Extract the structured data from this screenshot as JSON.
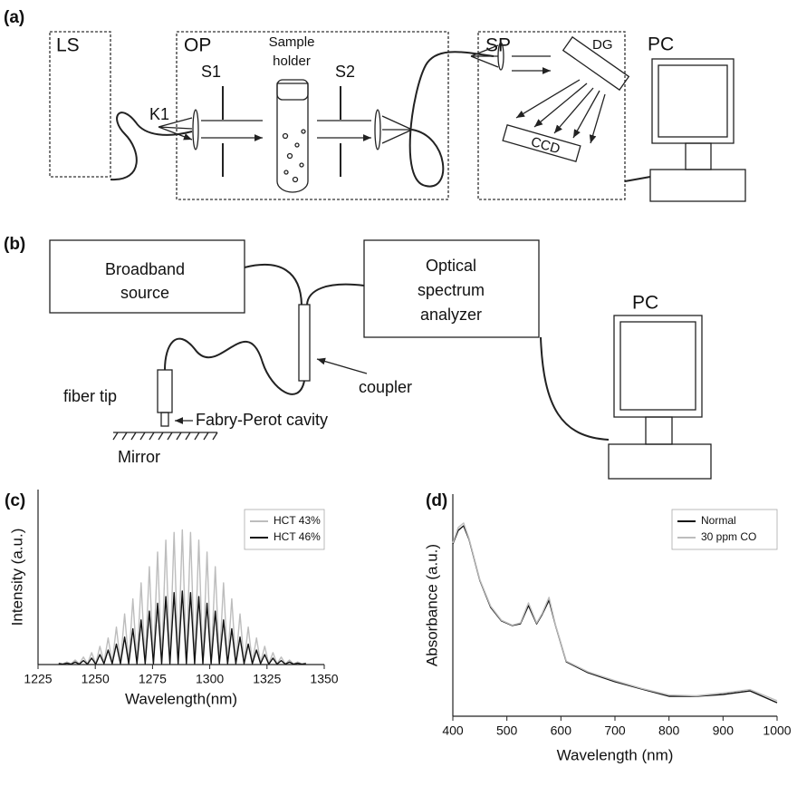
{
  "figure_a": {
    "label": "(a)",
    "ls": "LS",
    "op": "OP",
    "sp": "SP",
    "pc": "PC",
    "k1": "K1",
    "s1": "S1",
    "s2": "S2",
    "sample_holder": [
      "Sample",
      "holder"
    ],
    "dg": "DG",
    "ccd": "CCD"
  },
  "figure_b": {
    "label": "(b)",
    "source": [
      "Broadband",
      "source"
    ],
    "analyzer": [
      "Optical",
      "spectrum",
      "analyzer"
    ],
    "pc": "PC",
    "coupler": "coupler",
    "fiber_tip": "fiber tip",
    "cavity": "Fabry-Perot cavity",
    "mirror": "Mirror"
  },
  "chart_data": [
    {
      "type": "line",
      "label": "(c)",
      "x_label": "Wavelength(nm)",
      "y_label": "Intensity (a.u.)",
      "legend": "upper right",
      "xlim": [
        1225,
        1350
      ],
      "xticks": [
        1225,
        1250,
        1275,
        1300,
        1325,
        1350
      ],
      "ylim": [
        0,
        1
      ],
      "x": [
        1234,
        1235.8,
        1237.6,
        1239.4,
        1241.2,
        1243,
        1244.8,
        1246.6,
        1248.4,
        1250.2,
        1252,
        1253.8,
        1255.6,
        1257.4,
        1259.2,
        1261,
        1262.8,
        1264.6,
        1266.4,
        1268.2,
        1270,
        1271.8,
        1273.6,
        1275.4,
        1277.2,
        1279,
        1280.8,
        1282.6,
        1284.4,
        1286.2,
        1288,
        1289.8,
        1291.6,
        1293.4,
        1295.2,
        1297,
        1298.8,
        1300.6,
        1302.4,
        1304.2,
        1306,
        1307.8,
        1309.6,
        1311.4,
        1313.2,
        1315,
        1316.8,
        1318.6,
        1320.4,
        1322.2,
        1324,
        1325.8,
        1327.6,
        1329.4,
        1331.2,
        1333,
        1334.8,
        1336.6,
        1338.4,
        1340.2,
        1342
      ],
      "series": [
        {
          "name": "HCT 43%",
          "color": "#bdbdbd",
          "values": [
            0.009,
            0.003,
            0.015,
            0.003,
            0.026,
            0.003,
            0.043,
            0.003,
            0.068,
            0.003,
            0.104,
            0.01,
            0.152,
            0.01,
            0.214,
            0.01,
            0.289,
            0.01,
            0.375,
            0.01,
            0.467,
            0.01,
            0.559,
            0.01,
            0.643,
            0.01,
            0.711,
            0.01,
            0.755,
            0.01,
            0.77,
            0.01,
            0.755,
            0.01,
            0.711,
            0.01,
            0.643,
            0.01,
            0.559,
            0.01,
            0.467,
            0.01,
            0.375,
            0.01,
            0.289,
            0.01,
            0.214,
            0.01,
            0.152,
            0.01,
            0.104,
            0.003,
            0.068,
            0.003,
            0.043,
            0.003,
            0.026,
            0.003,
            0.015,
            0.003,
            0.009
          ]
        },
        {
          "name": "HCT 46%",
          "color": "#111111",
          "values": [
            0.005,
            0.002,
            0.008,
            0.002,
            0.014,
            0.002,
            0.023,
            0.002,
            0.037,
            0.002,
            0.057,
            0.005,
            0.083,
            0.005,
            0.117,
            0.005,
            0.157,
            0.005,
            0.204,
            0.005,
            0.255,
            0.005,
            0.305,
            0.005,
            0.35,
            0.005,
            0.388,
            0.005,
            0.411,
            0.005,
            0.42,
            0.005,
            0.411,
            0.005,
            0.388,
            0.005,
            0.35,
            0.005,
            0.305,
            0.005,
            0.255,
            0.005,
            0.204,
            0.005,
            0.157,
            0.005,
            0.117,
            0.005,
            0.083,
            0.005,
            0.057,
            0.002,
            0.037,
            0.002,
            0.023,
            0.002,
            0.014,
            0.002,
            0.008,
            0.002,
            0.005
          ]
        }
      ]
    },
    {
      "type": "line",
      "label": "(d)",
      "x_label": "Wavelength (nm)",
      "y_label": "Absorbance (a.u.)",
      "legend": "upper right",
      "xlim": [
        400,
        1000
      ],
      "xticks": [
        400,
        500,
        600,
        700,
        800,
        900,
        1000
      ],
      "ylim": [
        0,
        1
      ],
      "x": [
        400,
        410,
        420,
        430,
        450,
        470,
        490,
        510,
        525,
        540,
        555,
        565,
        578,
        590,
        610,
        650,
        700,
        750,
        800,
        850,
        900,
        950,
        1000
      ],
      "series": [
        {
          "name": "Normal",
          "color": "#111111",
          "values": [
            0.776,
            0.837,
            0.857,
            0.796,
            0.612,
            0.49,
            0.429,
            0.408,
            0.416,
            0.498,
            0.416,
            0.457,
            0.522,
            0.408,
            0.245,
            0.196,
            0.155,
            0.122,
            0.09,
            0.09,
            0.098,
            0.114,
            0.061
          ]
        },
        {
          "name": "30 ppm CO",
          "color": "#bdbdbd",
          "values": [
            0.78,
            0.85,
            0.87,
            0.8,
            0.615,
            0.495,
            0.432,
            0.41,
            0.42,
            0.51,
            0.42,
            0.462,
            0.535,
            0.41,
            0.248,
            0.2,
            0.16,
            0.125,
            0.095,
            0.092,
            0.104,
            0.12,
            0.07
          ]
        }
      ]
    }
  ]
}
